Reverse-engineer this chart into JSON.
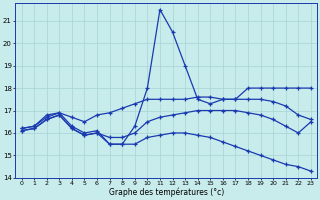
{
  "series": [
    {
      "name": "spike_line",
      "x": [
        0,
        1,
        2,
        3,
        4,
        5,
        6,
        7,
        8,
        9,
        10,
        11,
        12,
        13,
        14,
        15,
        16,
        17,
        18,
        19,
        20,
        21,
        22,
        23
      ],
      "y": [
        16.2,
        16.3,
        16.8,
        16.9,
        16.3,
        16.0,
        16.1,
        15.5,
        15.5,
        16.3,
        18.0,
        21.5,
        20.5,
        19.0,
        17.5,
        17.3,
        17.5,
        17.5,
        18.0,
        18.0,
        18.0,
        18.0,
        18.0,
        18.0
      ]
    },
    {
      "name": "upper_flat_line",
      "x": [
        0,
        1,
        2,
        3,
        4,
        5,
        6,
        7,
        8,
        9,
        10,
        11,
        12,
        13,
        14,
        15,
        16,
        17,
        18,
        19,
        20,
        21,
        22,
        23
      ],
      "y": [
        16.2,
        16.3,
        16.7,
        16.9,
        16.7,
        16.5,
        16.8,
        16.9,
        17.1,
        17.3,
        17.5,
        17.5,
        17.5,
        17.5,
        17.6,
        17.6,
        17.5,
        17.5,
        17.5,
        17.5,
        17.4,
        17.2,
        16.8,
        16.6
      ]
    },
    {
      "name": "lower_flat_line",
      "x": [
        0,
        1,
        2,
        3,
        4,
        5,
        6,
        7,
        8,
        9,
        10,
        11,
        12,
        13,
        14,
        15,
        16,
        17,
        18,
        19,
        20,
        21,
        22,
        23
      ],
      "y": [
        16.1,
        16.2,
        16.6,
        16.8,
        16.2,
        15.9,
        16.0,
        15.8,
        15.8,
        16.0,
        16.5,
        16.7,
        16.8,
        16.9,
        17.0,
        17.0,
        17.0,
        17.0,
        16.9,
        16.8,
        16.6,
        16.3,
        16.0,
        16.5
      ]
    },
    {
      "name": "bottom_diagonal",
      "x": [
        0,
        1,
        2,
        3,
        4,
        5,
        6,
        7,
        8,
        9,
        10,
        11,
        12,
        13,
        14,
        15,
        16,
        17,
        18,
        19,
        20,
        21,
        22,
        23
      ],
      "y": [
        16.1,
        16.2,
        16.6,
        16.8,
        16.2,
        15.9,
        16.0,
        15.5,
        15.5,
        15.5,
        15.8,
        15.9,
        16.0,
        16.0,
        15.9,
        15.8,
        15.6,
        15.4,
        15.2,
        15.0,
        14.8,
        14.6,
        14.5,
        14.3
      ]
    }
  ],
  "xlabel": "Graphe des températures (°c)",
  "xlim": [
    -0.5,
    23.5
  ],
  "ylim": [
    14,
    21.8
  ],
  "yticks": [
    14,
    15,
    16,
    17,
    18,
    19,
    20,
    21
  ],
  "xticks": [
    0,
    1,
    2,
    3,
    4,
    5,
    6,
    7,
    8,
    9,
    10,
    11,
    12,
    13,
    14,
    15,
    16,
    17,
    18,
    19,
    20,
    21,
    22,
    23
  ],
  "bg_color": "#c8ecec",
  "line_color": "#1a3ab0",
  "grid_color": "#a8d4d4",
  "marker": "+"
}
